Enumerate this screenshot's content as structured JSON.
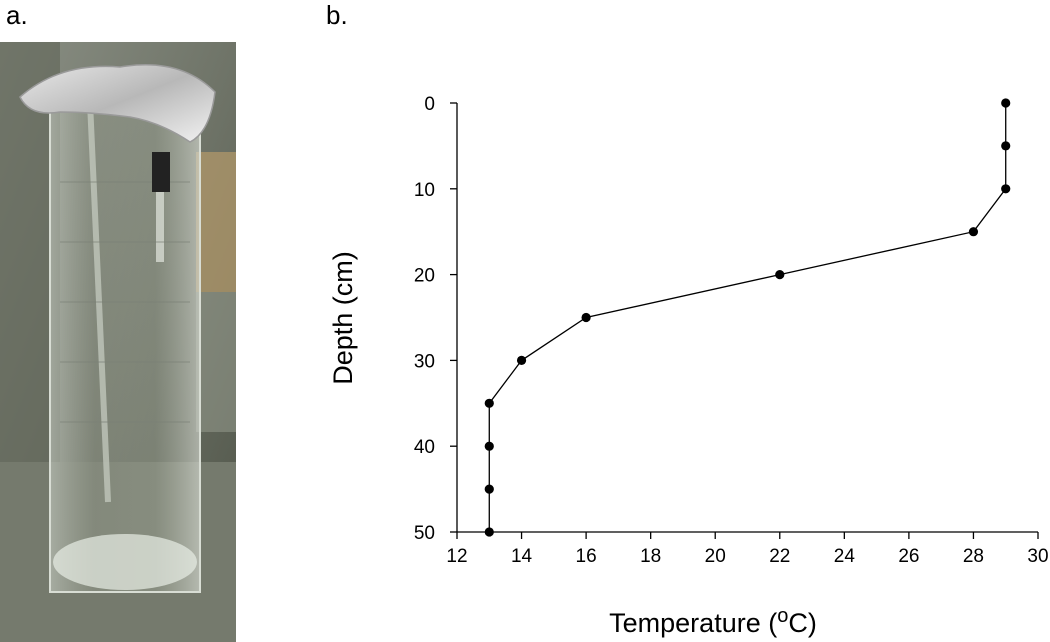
{
  "panels": {
    "a_label": "a.",
    "b_label": "b."
  },
  "photo": {
    "description_icon": "glass-cylinder-photo-icon"
  },
  "chart_data": {
    "type": "line",
    "xlabel_main": "Temperature (",
    "xlabel_sup": "o",
    "xlabel_end": "C)",
    "ylabel": "Depth (cm)",
    "xlim": [
      12,
      30
    ],
    "ylim": [
      0,
      50
    ],
    "y_inverted": true,
    "xticks": [
      12,
      14,
      16,
      18,
      20,
      22,
      24,
      26,
      28,
      30
    ],
    "yticks": [
      0,
      10,
      20,
      30,
      40,
      50
    ],
    "grid": false,
    "series": [
      {
        "x": [
          29,
          29,
          29,
          28,
          22,
          16,
          14,
          13,
          13,
          13,
          13
        ],
        "y": [
          0,
          5,
          10,
          15,
          20,
          25,
          30,
          35,
          40,
          45,
          50
        ]
      }
    ]
  }
}
